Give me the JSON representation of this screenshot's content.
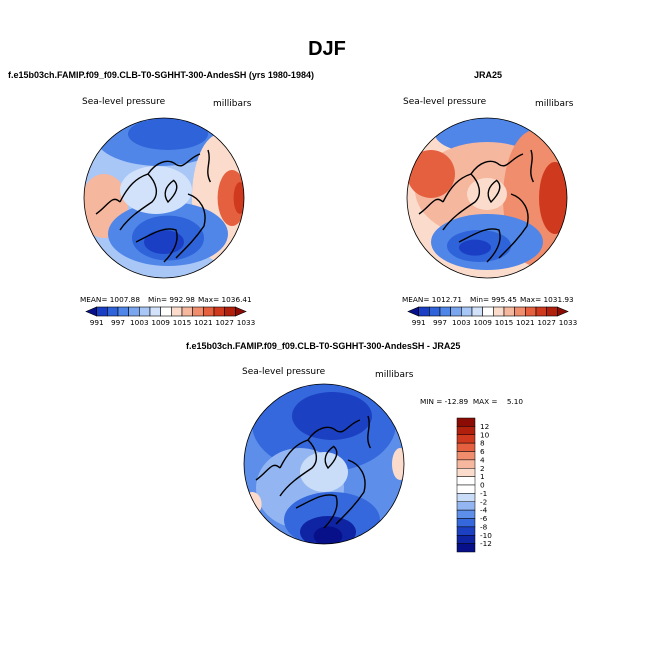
{
  "figure": {
    "title": "DJF"
  },
  "chart_data": [
    {
      "type": "heatmap",
      "map_projection": "polar stereographic (north pole)",
      "title": "f.e15b03ch.FAMIP.f09_f09.CLB-T0-SGHHT-300-AndesSH (yrs 1980-1984)",
      "variable": "Sea-level pressure",
      "units": "millibars",
      "stats": {
        "mean": "1007.88",
        "min": "992.98",
        "max": "1036.41"
      },
      "stats_text": {
        "mean": "MEAN= 1007.88",
        "min": "Min= 992.98",
        "max": "Max= 1036.41"
      },
      "colorbar": {
        "orientation": "horizontal",
        "tick_labels": [
          "991",
          "997",
          "1003",
          "1009",
          "1015",
          "1021",
          "1027",
          "1033"
        ],
        "colors": [
          "#08108a",
          "#1a3fc4",
          "#2e63d9",
          "#4f86e8",
          "#7aa6f0",
          "#a8c6f6",
          "#d2e2fa",
          "#ffffff",
          "#fbdccc",
          "#f6b79f",
          "#f08d6c",
          "#e5603f",
          "#cf3a1e",
          "#b0200d",
          "#8b0c05"
        ]
      }
    },
    {
      "type": "heatmap",
      "map_projection": "polar stereographic (north pole)",
      "title": "JRA25",
      "variable": "Sea-level pressure",
      "units": "millibars",
      "stats": {
        "mean": "1012.71",
        "min": "995.45",
        "max": "1031.93"
      },
      "stats_text": {
        "mean": "MEAN= 1012.71",
        "min": "Min= 995.45",
        "max": "Max= 1031.93"
      },
      "colorbar": {
        "orientation": "horizontal",
        "tick_labels": [
          "991",
          "997",
          "1003",
          "1009",
          "1015",
          "1021",
          "1027",
          "1033"
        ],
        "colors": [
          "#08108a",
          "#1a3fc4",
          "#2e63d9",
          "#4f86e8",
          "#7aa6f0",
          "#a8c6f6",
          "#d2e2fa",
          "#ffffff",
          "#fbdccc",
          "#f6b79f",
          "#f08d6c",
          "#e5603f",
          "#cf3a1e",
          "#b0200d",
          "#8b0c05"
        ]
      }
    },
    {
      "type": "heatmap",
      "map_projection": "polar stereographic (north pole)",
      "title": "f.e15b03ch.FAMIP.f09_f09.CLB-T0-SGHHT-300-AndesSH - JRA25",
      "variable": "Sea-level pressure",
      "units": "millibars",
      "stats": {
        "min": "-12.89",
        "max": "5.10"
      },
      "stats_text": {
        "line": "MIN = -12.89  MAX =    5.10"
      },
      "colorbar": {
        "orientation": "vertical",
        "tick_labels": [
          "12",
          "10",
          "8",
          "6",
          "4",
          "2",
          "1",
          "0",
          "-1",
          "-2",
          "-4",
          "-6",
          "-8",
          "-10",
          "-12"
        ],
        "colors": [
          "#8b0c05",
          "#b0200d",
          "#cf3a1e",
          "#e5603f",
          "#f08d6c",
          "#f6b79f",
          "#fbdccc",
          "#ffffff",
          "#ffffff",
          "#c9dcf8",
          "#93b6f2",
          "#5d8eea",
          "#3468dc",
          "#1c40c2",
          "#0f24a3",
          "#071089"
        ]
      }
    }
  ]
}
